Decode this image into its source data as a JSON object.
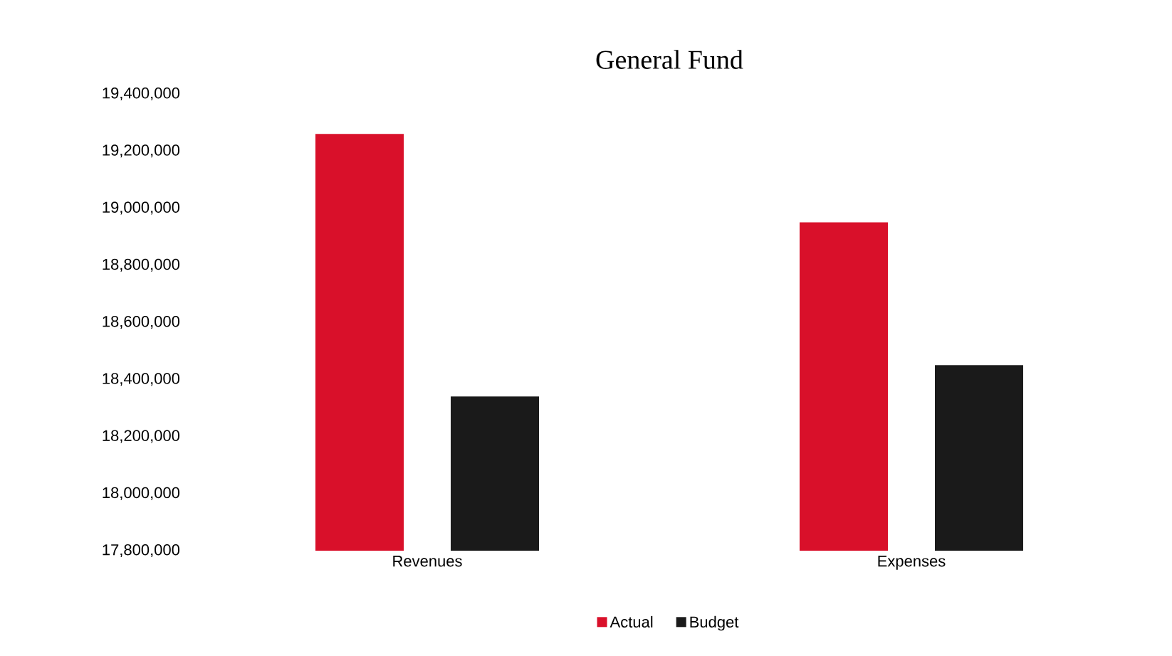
{
  "chart_data": {
    "type": "bar",
    "title": "General Fund",
    "categories": [
      "Revenues",
      "Expenses"
    ],
    "series": [
      {
        "name": "Actual",
        "color": "#d9102a",
        "values": [
          19260000,
          18950000
        ]
      },
      {
        "name": "Budget",
        "color": "#1a1a1a",
        "values": [
          18340000,
          18450000
        ]
      }
    ],
    "ylim": [
      17800000,
      19400000
    ],
    "yticks": [
      {
        "value": 17800000,
        "label": "17,800,000"
      },
      {
        "value": 18000000,
        "label": "18,000,000"
      },
      {
        "value": 18200000,
        "label": "18,200,000"
      },
      {
        "value": 18400000,
        "label": "18,400,000"
      },
      {
        "value": 18600000,
        "label": "18,600,000"
      },
      {
        "value": 18800000,
        "label": "18,800,000"
      },
      {
        "value": 19000000,
        "label": "19,000,000"
      },
      {
        "value": 19200000,
        "label": "19,200,000"
      },
      {
        "value": 19400000,
        "label": "19,400,000"
      }
    ],
    "grid": false,
    "legend": "bottom"
  }
}
